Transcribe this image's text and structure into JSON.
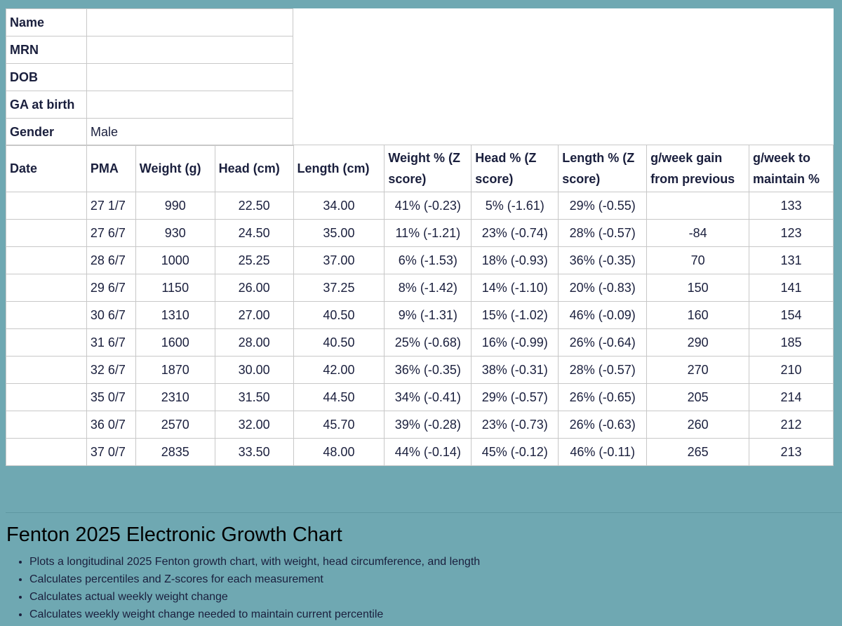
{
  "patient": {
    "fields": [
      {
        "label": "Name",
        "value": ""
      },
      {
        "label": "MRN",
        "value": ""
      },
      {
        "label": "DOB",
        "value": ""
      },
      {
        "label": "GA at birth",
        "value": ""
      },
      {
        "label": "Gender",
        "value": "Male"
      }
    ]
  },
  "measurements": {
    "headers": [
      "Date",
      "PMA",
      "Weight (g)",
      "Head (cm)",
      "Length (cm)",
      "Weight % (Z score)",
      "Head % (Z score)",
      "Length % (Z score)",
      "g/week gain from previous",
      "g/week to maintain %"
    ],
    "rows": [
      [
        "",
        "27 1/7",
        "990",
        "22.50",
        "34.00",
        "41% (-0.23)",
        "5% (-1.61)",
        "29% (-0.55)",
        "",
        "133"
      ],
      [
        "",
        "27 6/7",
        "930",
        "24.50",
        "35.00",
        "11% (-1.21)",
        "23% (-0.74)",
        "28% (-0.57)",
        "-84",
        "123"
      ],
      [
        "",
        "28 6/7",
        "1000",
        "25.25",
        "37.00",
        "6% (-1.53)",
        "18% (-0.93)",
        "36% (-0.35)",
        "70",
        "131"
      ],
      [
        "",
        "29 6/7",
        "1150",
        "26.00",
        "37.25",
        "8% (-1.42)",
        "14% (-1.10)",
        "20% (-0.83)",
        "150",
        "141"
      ],
      [
        "",
        "30 6/7",
        "1310",
        "27.00",
        "40.50",
        "9% (-1.31)",
        "15% (-1.02)",
        "46% (-0.09)",
        "160",
        "154"
      ],
      [
        "",
        "31 6/7",
        "1600",
        "28.00",
        "40.50",
        "25% (-0.68)",
        "16% (-0.99)",
        "26% (-0.64)",
        "290",
        "185"
      ],
      [
        "",
        "32 6/7",
        "1870",
        "30.00",
        "42.00",
        "36% (-0.35)",
        "38% (-0.31)",
        "28% (-0.57)",
        "270",
        "210"
      ],
      [
        "",
        "35 0/7",
        "2310",
        "31.50",
        "44.50",
        "34% (-0.41)",
        "29% (-0.57)",
        "26% (-0.65)",
        "205",
        "214"
      ],
      [
        "",
        "36 0/7",
        "2570",
        "32.00",
        "45.70",
        "39% (-0.28)",
        "23% (-0.73)",
        "26% (-0.63)",
        "260",
        "212"
      ],
      [
        "",
        "37 0/7",
        "2835",
        "33.50",
        "48.00",
        "44% (-0.14)",
        "45% (-0.12)",
        "46% (-0.11)",
        "265",
        "213"
      ]
    ]
  },
  "about": {
    "title": "Fenton 2025 Electronic Growth Chart",
    "bullets": [
      "Plots a longitudinal 2025 Fenton growth chart, with weight, head circumference, and length",
      "Calculates percentiles and Z-scores for each measurement",
      "Calculates actual weekly weight change",
      "Calculates weekly weight change needed to maintain current percentile"
    ]
  }
}
